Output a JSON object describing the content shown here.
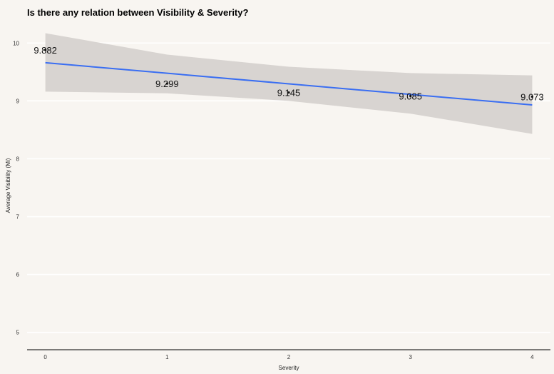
{
  "chart_data": {
    "type": "scatter",
    "title": "Is there any relation between Visibility & Severity?",
    "xlabel": "Severity",
    "ylabel": "Average Visibility (Mi)",
    "x": [
      0,
      1,
      2,
      3,
      4
    ],
    "y": [
      9.882,
      9.299,
      9.145,
      9.085,
      9.073
    ],
    "data_labels": [
      "9.882",
      "9.299",
      "9.145",
      "9.085",
      "9.073"
    ],
    "x_ticks": [
      "0",
      "1",
      "2",
      "3",
      "4"
    ],
    "y_ticks": [
      "5",
      "6",
      "7",
      "8",
      "9",
      "10"
    ],
    "xlim": [
      -0.15,
      4.15
    ],
    "ylim": [
      4.7,
      10.25
    ],
    "trend_line": {
      "start": [
        0,
        9.66
      ],
      "end": [
        4,
        8.93
      ]
    },
    "confidence_band": {
      "upper": [
        [
          0,
          10.17
        ],
        [
          1,
          9.8
        ],
        [
          2,
          9.59
        ],
        [
          3,
          9.48
        ],
        [
          4,
          9.44
        ]
      ],
      "lower": [
        [
          0,
          9.16
        ],
        [
          1,
          9.13
        ],
        [
          2,
          9.0
        ],
        [
          3,
          8.78
        ],
        [
          4,
          8.43
        ]
      ]
    },
    "grid": true,
    "colors": {
      "background": "#f8f5f1",
      "band": "#d6d2cf",
      "line": "#3a6ef2",
      "grid": "#ffffff",
      "axis": "#000000"
    }
  }
}
